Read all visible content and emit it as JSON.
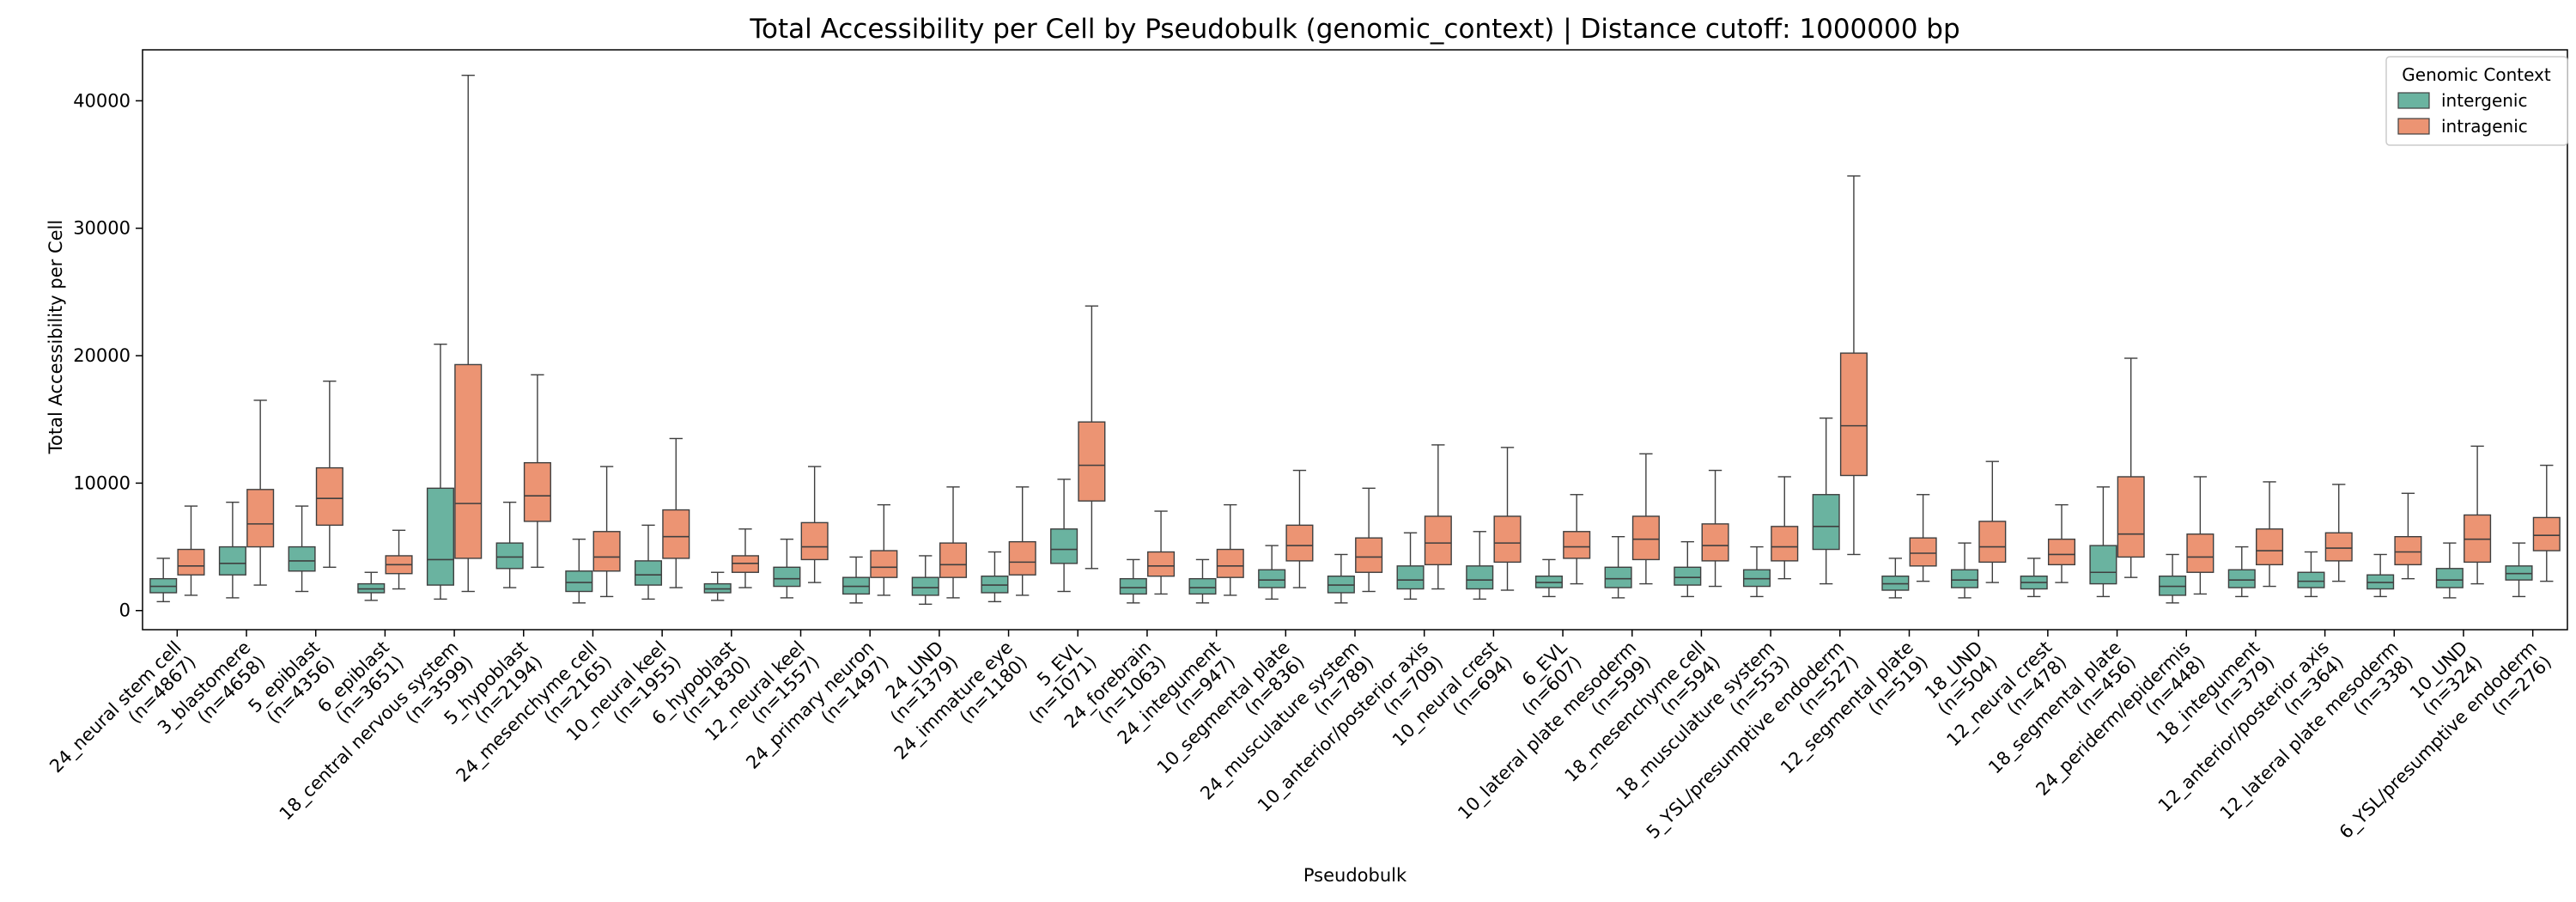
{
  "chart_data": {
    "type": "box",
    "title": "Total Accessibility per Cell by Pseudobulk (genomic_context) | Distance cutoff: 1000000 bp",
    "xlabel": "Pseudobulk",
    "ylabel": "Total Accessibility per Cell",
    "ylim": [
      -1500,
      44000
    ],
    "yticks": [
      0,
      10000,
      20000,
      30000,
      40000
    ],
    "yticklabels": [
      "0",
      "10000",
      "20000",
      "30000",
      "40000"
    ],
    "legend": {
      "title": "Genomic Context",
      "position": "top-right",
      "entries": [
        "intergenic",
        "intragenic"
      ]
    },
    "colors": {
      "intergenic": "#6ab3a0",
      "intragenic": "#ec9473",
      "line": "#3f3f3f"
    },
    "categories": [
      {
        "label": "24_neural stem cell\n(n=4867)",
        "intergenic": [
          700,
          1400,
          1900,
          2500,
          4100
        ],
        "intragenic": [
          1200,
          2800,
          3500,
          4800,
          8200
        ]
      },
      {
        "label": "3_blastomere\n(n=4658)",
        "intergenic": [
          1000,
          2800,
          3700,
          5000,
          8500
        ],
        "intragenic": [
          2000,
          5000,
          6800,
          9500,
          16500
        ]
      },
      {
        "label": "5_epiblast\n(n=4356)",
        "intergenic": [
          1500,
          3100,
          3900,
          5000,
          8200
        ],
        "intragenic": [
          3400,
          6700,
          8800,
          11200,
          18000
        ]
      },
      {
        "label": "6_epiblast\n(n=3651)",
        "intergenic": [
          800,
          1400,
          1700,
          2100,
          3000
        ],
        "intragenic": [
          1700,
          2900,
          3600,
          4300,
          6300
        ]
      },
      {
        "label": "18_central nervous system\n(n=3599)",
        "intergenic": [
          900,
          2000,
          4000,
          9600,
          20900
        ],
        "intragenic": [
          1500,
          4100,
          8400,
          19300,
          42000
        ]
      },
      {
        "label": "5_hypoblast\n(n=2194)",
        "intergenic": [
          1800,
          3300,
          4200,
          5300,
          8500
        ],
        "intragenic": [
          3400,
          7000,
          9000,
          11600,
          18500
        ]
      },
      {
        "label": "24_mesenchyme cell\n(n=2165)",
        "intergenic": [
          600,
          1500,
          2200,
          3100,
          5600
        ],
        "intragenic": [
          1100,
          3100,
          4200,
          6200,
          11300
        ]
      },
      {
        "label": "10_neural keel\n(n=1955)",
        "intergenic": [
          900,
          2000,
          2800,
          3900,
          6700
        ],
        "intragenic": [
          1800,
          4100,
          5800,
          7900,
          13500
        ]
      },
      {
        "label": "6_hypoblast\n(n=1830)",
        "intergenic": [
          800,
          1400,
          1700,
          2100,
          3000
        ],
        "intragenic": [
          1800,
          3000,
          3700,
          4300,
          6400
        ]
      },
      {
        "label": "12_neural keel\n(n=1557)",
        "intergenic": [
          1000,
          1900,
          2500,
          3400,
          5600
        ],
        "intragenic": [
          2200,
          4000,
          5000,
          6900,
          11300
        ]
      },
      {
        "label": "24_primary neuron\n(n=1497)",
        "intergenic": [
          600,
          1300,
          1900,
          2600,
          4200
        ],
        "intragenic": [
          1200,
          2600,
          3400,
          4700,
          8300
        ]
      },
      {
        "label": "24_UND\n(n=1379)",
        "intergenic": [
          500,
          1200,
          1800,
          2600,
          4300
        ],
        "intragenic": [
          1000,
          2600,
          3600,
          5300,
          9700
        ]
      },
      {
        "label": "24_immature eye\n(n=1180)",
        "intergenic": [
          700,
          1400,
          2000,
          2700,
          4600
        ],
        "intragenic": [
          1200,
          2800,
          3800,
          5400,
          9700
        ]
      },
      {
        "label": "5_EVL\n(n=1071)",
        "intergenic": [
          1500,
          3700,
          4800,
          6400,
          10300
        ],
        "intragenic": [
          3300,
          8600,
          11400,
          14800,
          23900
        ]
      },
      {
        "label": "24_forebrain\n(n=1063)",
        "intergenic": [
          600,
          1300,
          1800,
          2500,
          4000
        ],
        "intragenic": [
          1300,
          2700,
          3500,
          4600,
          7800
        ]
      },
      {
        "label": "24_integument\n(n=947)",
        "intergenic": [
          600,
          1300,
          1800,
          2500,
          4000
        ],
        "intragenic": [
          1200,
          2600,
          3500,
          4800,
          8300
        ]
      },
      {
        "label": "10_segmental plate\n(n=836)",
        "intergenic": [
          900,
          1800,
          2400,
          3200,
          5100
        ],
        "intragenic": [
          1800,
          3900,
          5100,
          6700,
          11000
        ]
      },
      {
        "label": "24_musculature system\n(n=789)",
        "intergenic": [
          600,
          1400,
          2000,
          2700,
          4400
        ],
        "intragenic": [
          1500,
          3000,
          4200,
          5700,
          9600
        ]
      },
      {
        "label": "10_anterior/posterior axis\n(n=709)",
        "intergenic": [
          900,
          1700,
          2400,
          3500,
          6100
        ],
        "intragenic": [
          1700,
          3600,
          5300,
          7400,
          13000
        ]
      },
      {
        "label": "10_neural crest\n(n=694)",
        "intergenic": [
          900,
          1700,
          2400,
          3500,
          6200
        ],
        "intragenic": [
          1600,
          3800,
          5300,
          7400,
          12800
        ]
      },
      {
        "label": "6_EVL\n(n=607)",
        "intergenic": [
          1100,
          1800,
          2200,
          2700,
          4000
        ],
        "intragenic": [
          2100,
          4100,
          5000,
          6200,
          9100
        ]
      },
      {
        "label": "10_lateral plate mesoderm\n(n=599)",
        "intergenic": [
          1000,
          1800,
          2500,
          3400,
          5800
        ],
        "intragenic": [
          2100,
          4000,
          5600,
          7400,
          12300
        ]
      },
      {
        "label": "18_mesenchyme cell\n(n=594)",
        "intergenic": [
          1100,
          2000,
          2600,
          3400,
          5400
        ],
        "intragenic": [
          1900,
          3900,
          5100,
          6800,
          11000
        ]
      },
      {
        "label": "18_musculature system\n(n=553)",
        "intergenic": [
          1100,
          1900,
          2500,
          3200,
          5000
        ],
        "intragenic": [
          2500,
          3900,
          5000,
          6600,
          10500
        ]
      },
      {
        "label": "5_YSL/presumptive endoderm\n(n=527)",
        "intergenic": [
          2100,
          4800,
          6600,
          9100,
          15100
        ],
        "intragenic": [
          4400,
          10600,
          14500,
          20200,
          34100
        ]
      },
      {
        "label": "12_segmental plate\n(n=519)",
        "intergenic": [
          1000,
          1600,
          2100,
          2700,
          4100
        ],
        "intragenic": [
          2300,
          3500,
          4500,
          5700,
          9100
        ]
      },
      {
        "label": "18_UND\n(n=504)",
        "intergenic": [
          1000,
          1800,
          2400,
          3200,
          5300
        ],
        "intragenic": [
          2200,
          3800,
          5000,
          7000,
          11700
        ]
      },
      {
        "label": "12_neural crest\n(n=478)",
        "intergenic": [
          1100,
          1700,
          2200,
          2700,
          4100
        ],
        "intragenic": [
          2200,
          3600,
          4400,
          5600,
          8300
        ]
      },
      {
        "label": "18_segmental plate\n(n=456)",
        "intergenic": [
          1100,
          2100,
          3000,
          5100,
          9700
        ],
        "intragenic": [
          2600,
          4200,
          6000,
          10500,
          19800
        ]
      },
      {
        "label": "24_periderm/epidermis\n(n=448)",
        "intergenic": [
          600,
          1200,
          1900,
          2700,
          4400
        ],
        "intragenic": [
          1300,
          3000,
          4200,
          6000,
          10500
        ]
      },
      {
        "label": "18_integument\n(n=379)",
        "intergenic": [
          1100,
          1800,
          2400,
          3200,
          5000
        ],
        "intragenic": [
          1900,
          3600,
          4700,
          6400,
          10100
        ]
      },
      {
        "label": "12_anterior/posterior axis\n(n=364)",
        "intergenic": [
          1100,
          1800,
          2300,
          3000,
          4600
        ],
        "intragenic": [
          2300,
          3900,
          4900,
          6100,
          9900
        ]
      },
      {
        "label": "12_lateral plate mesoderm\n(n=338)",
        "intergenic": [
          1100,
          1700,
          2200,
          2800,
          4400
        ],
        "intragenic": [
          2500,
          3600,
          4600,
          5800,
          9200
        ]
      },
      {
        "label": "10_UND\n(n=324)",
        "intergenic": [
          1000,
          1800,
          2400,
          3300,
          5300
        ],
        "intragenic": [
          2100,
          3800,
          5600,
          7500,
          12900
        ]
      },
      {
        "label": "6_YSL/presumptive endoderm\n(n=276)",
        "intergenic": [
          1100,
          2400,
          2900,
          3500,
          5300
        ],
        "intragenic": [
          2300,
          4700,
          5900,
          7300,
          11400
        ]
      }
    ]
  }
}
